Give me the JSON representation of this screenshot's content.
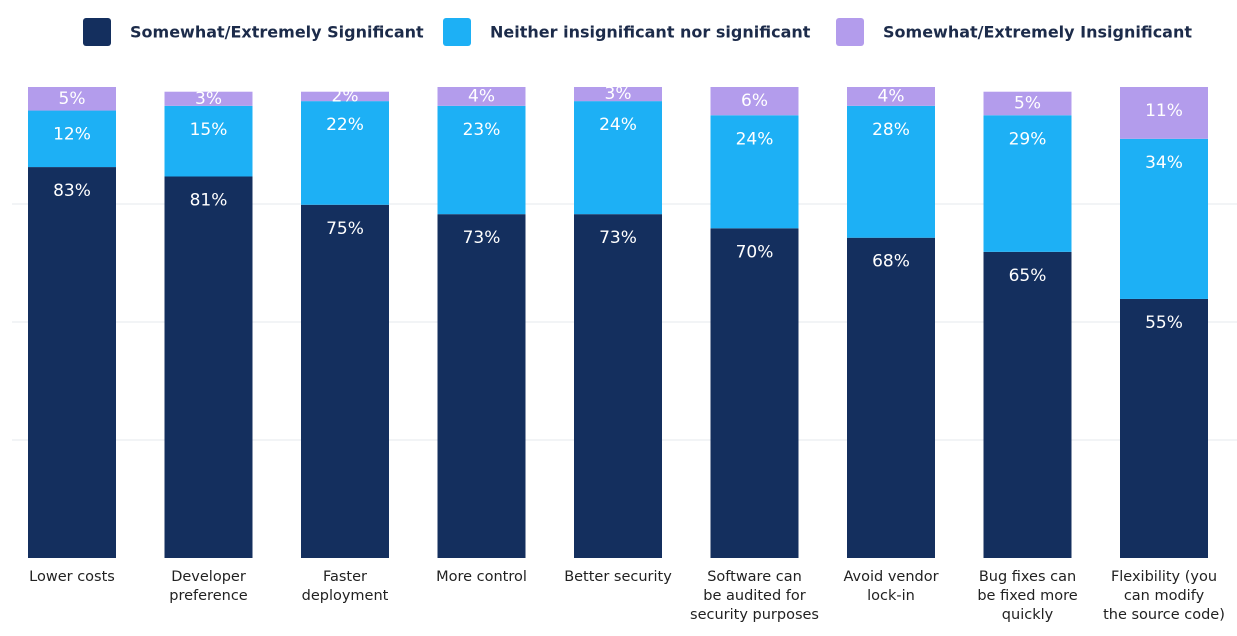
{
  "chart_data": {
    "type": "stacked_bar",
    "categories": [
      "Lower costs",
      "Developer\npreference",
      "Faster\ndeployment",
      "More control",
      "Better security",
      "Software can\nbe audited for\nsecurity purposes",
      "Avoid vendor\nlock-in",
      "Bug fixes can\nbe fixed more\nquickly",
      "Flexibility (you\ncan modify\nthe source code)"
    ],
    "series": [
      {
        "name": "Somewhat/Extremely Significant",
        "color": "#142f5e",
        "values": [
          83,
          81,
          75,
          73,
          73,
          70,
          68,
          65,
          55
        ],
        "value_labels": [
          "83%",
          "81%",
          "75%",
          "73%",
          "73%",
          "70%",
          "68%",
          "65%",
          "55%"
        ]
      },
      {
        "name": "Neither insignificant nor significant",
        "color": "#1db0f5",
        "values": [
          12,
          15,
          22,
          23,
          24,
          24,
          28,
          29,
          34
        ],
        "value_labels": [
          "12%",
          "15%",
          "22%",
          "23%",
          "24%",
          "24%",
          "28%",
          "29%",
          "34%"
        ]
      },
      {
        "name": "Somewhat/Extremely Insignificant",
        "color": "#b39cec",
        "values": [
          5,
          3,
          2,
          4,
          3,
          6,
          4,
          5,
          11
        ],
        "value_labels": [
          "5%",
          "3%",
          "2%",
          "4%",
          "3%",
          "6%",
          "4%",
          "5%",
          "11%"
        ]
      }
    ],
    "ylim": [
      0,
      100
    ],
    "legend": "top"
  }
}
